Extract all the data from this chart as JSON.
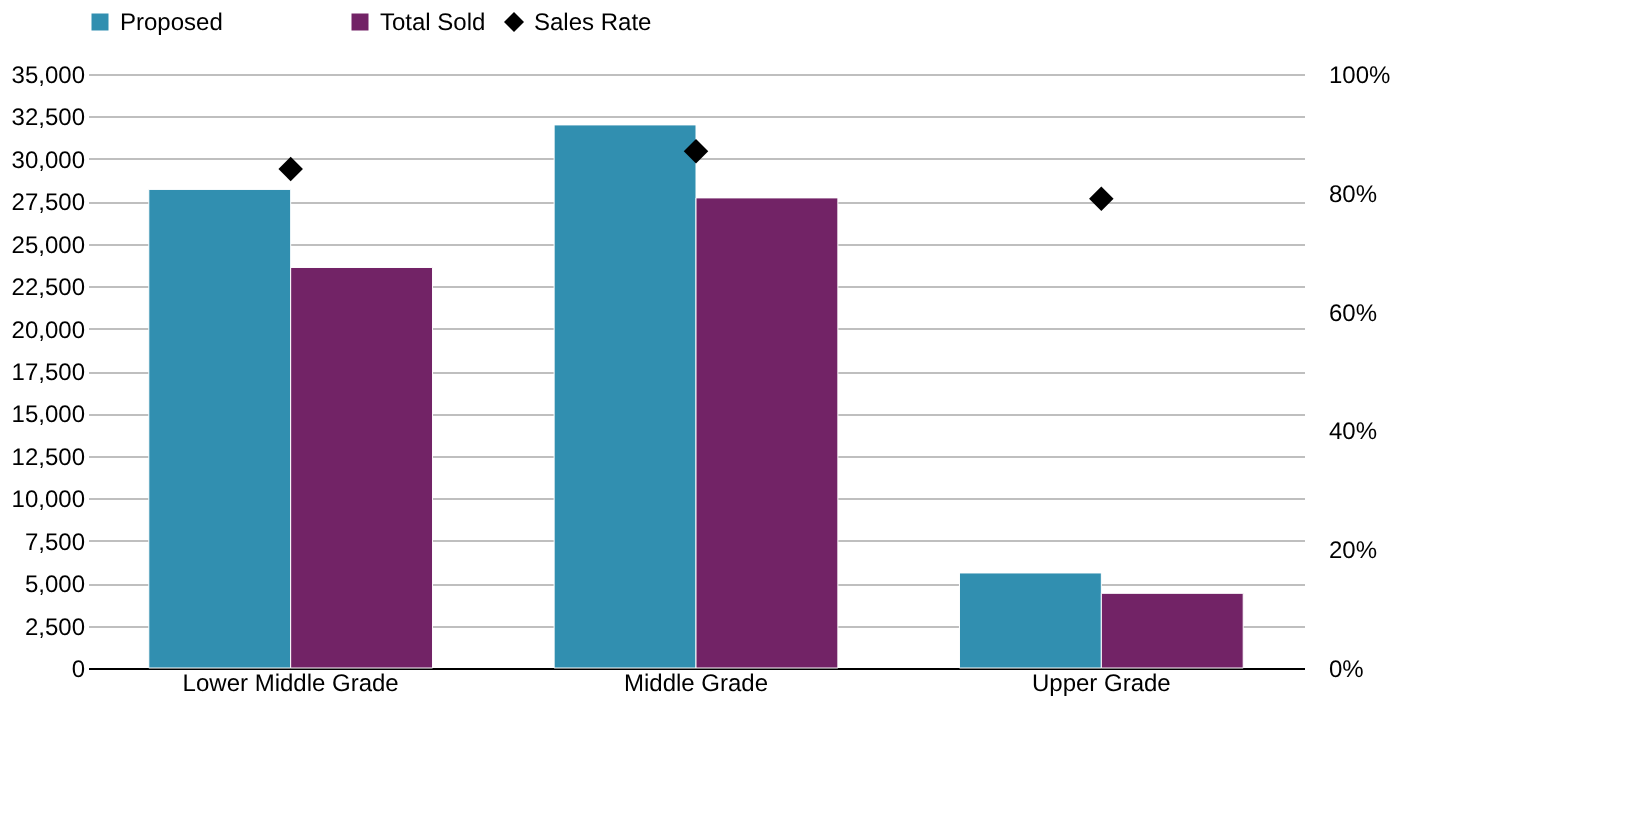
{
  "chart_data": {
    "type": "bar",
    "categories": [
      "Lower Middle Grade",
      "Middle Grade",
      "Upper Grade"
    ],
    "series": [
      {
        "name": "Proposed",
        "color": "#318fb0",
        "values": [
          28200,
          32000,
          5600
        ]
      },
      {
        "name": "Total Sold",
        "color": "#722366",
        "values": [
          23600,
          27700,
          4400
        ]
      },
      {
        "name": "Sales Rate",
        "color": "#000000",
        "type": "scatter",
        "axis": "y2",
        "marker": "diamond",
        "values": [
          84,
          87,
          79
        ]
      }
    ],
    "ylim": [
      0,
      35000
    ],
    "yticks": [
      {
        "value": 0,
        "label": "0"
      },
      {
        "value": 2500,
        "label": "2,500"
      },
      {
        "value": 5000,
        "label": "5,000"
      },
      {
        "value": 7500,
        "label": "7,500"
      },
      {
        "value": 10000,
        "label": "10,000"
      },
      {
        "value": 12500,
        "label": "12,500"
      },
      {
        "value": 15000,
        "label": "15,000"
      },
      {
        "value": 17500,
        "label": "17,500"
      },
      {
        "value": 20000,
        "label": "20,000"
      },
      {
        "value": 22500,
        "label": "22,500"
      },
      {
        "value": 25000,
        "label": "25,000"
      },
      {
        "value": 27500,
        "label": "27,500"
      },
      {
        "value": 30000,
        "label": "30,000"
      },
      {
        "value": 32500,
        "label": "32,500"
      },
      {
        "value": 35000,
        "label": "35,000"
      }
    ],
    "y2lim": [
      0,
      100
    ],
    "y2ticks": [
      {
        "value": 0,
        "label": "0%"
      },
      {
        "value": 20,
        "label": "20%"
      },
      {
        "value": 40,
        "label": "40%"
      },
      {
        "value": 60,
        "label": "60%"
      },
      {
        "value": 80,
        "label": "80%"
      },
      {
        "value": 100,
        "label": "100%"
      }
    ],
    "grid": "y",
    "legend": "top"
  }
}
